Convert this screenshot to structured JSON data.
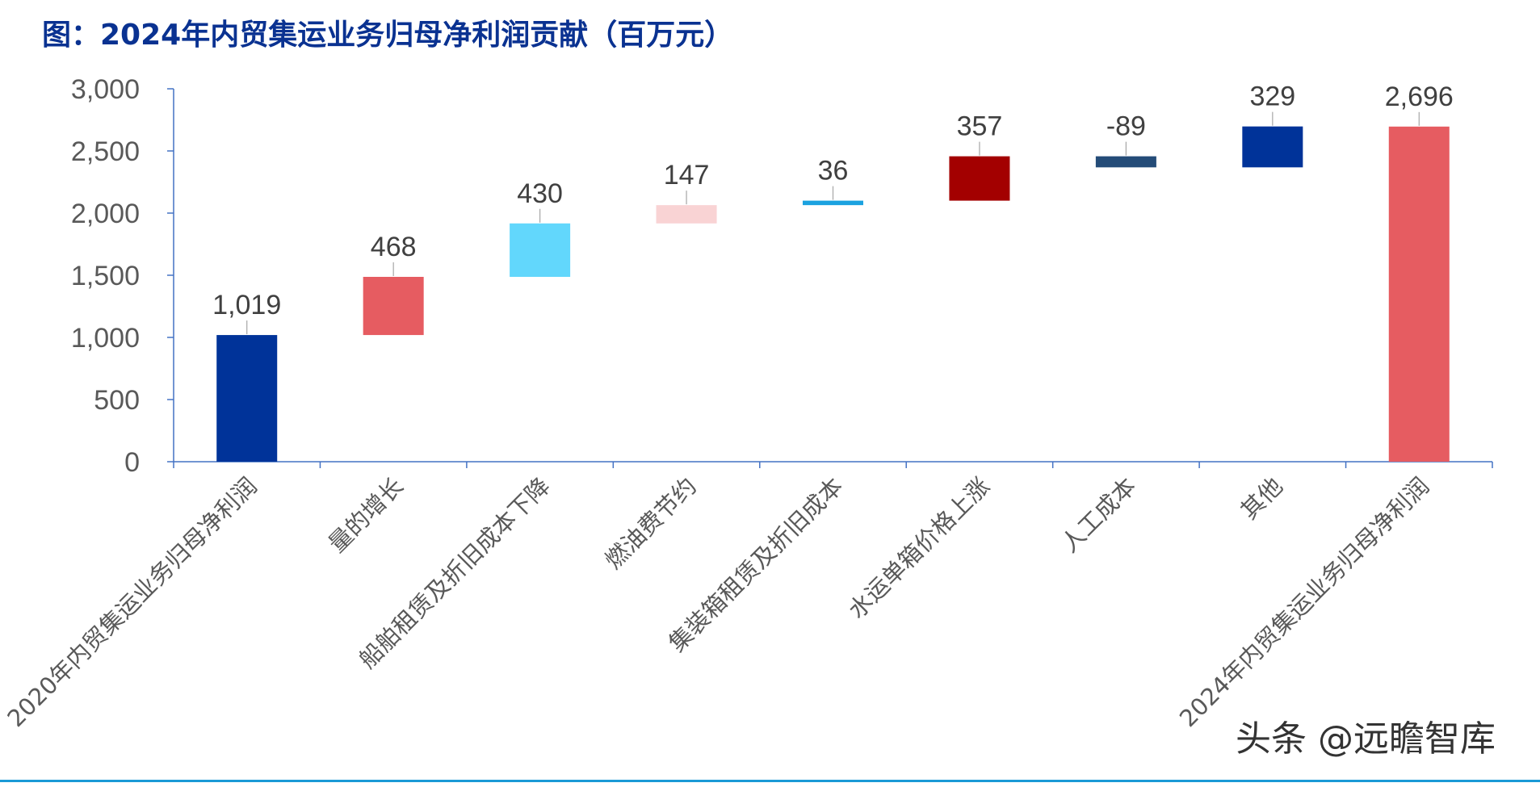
{
  "title": "图：2024年内贸集运业务归母净利润贡献（百万元）",
  "watermark": "头条 @远瞻智库",
  "colors": {
    "axis": "#4472c4",
    "tick_text": "#595959",
    "label_text": "#404040"
  },
  "chart_data": {
    "type": "waterfall",
    "title": "图：2024年内贸集运业务归母净利润贡献（百万元）",
    "ylim": [
      0,
      3000
    ],
    "yticks": [
      0,
      500,
      1000,
      1500,
      2000,
      2500,
      3000
    ],
    "ytick_labels": [
      "0",
      "500",
      "1,000",
      "1,500",
      "2,000",
      "2,500",
      "3,000"
    ],
    "categories": [
      "2020年内贸集运业务归母净利润",
      "量的增长",
      "船舶租赁及折旧成本下降",
      "燃油费节约",
      "集装箱租赁及折旧成本",
      "水运单箱价格上涨",
      "人工成本",
      "其他",
      "2024年内贸集运业务归母净利润"
    ],
    "values": [
      1019,
      468,
      430,
      147,
      36,
      357,
      -89,
      329,
      2696
    ],
    "value_labels": [
      "1,019",
      "468",
      "430",
      "147",
      "36",
      "357",
      "-89",
      "329",
      "2,696"
    ],
    "kinds": [
      "total",
      "delta",
      "delta",
      "delta",
      "delta",
      "delta",
      "delta",
      "delta",
      "total"
    ],
    "bar_colors": [
      "#003399",
      "#e65c61",
      "#62d7fc",
      "#f9d3d4",
      "#1ba2e0",
      "#a30000",
      "#244c78",
      "#003399",
      "#e65c61"
    ],
    "grid": false
  }
}
